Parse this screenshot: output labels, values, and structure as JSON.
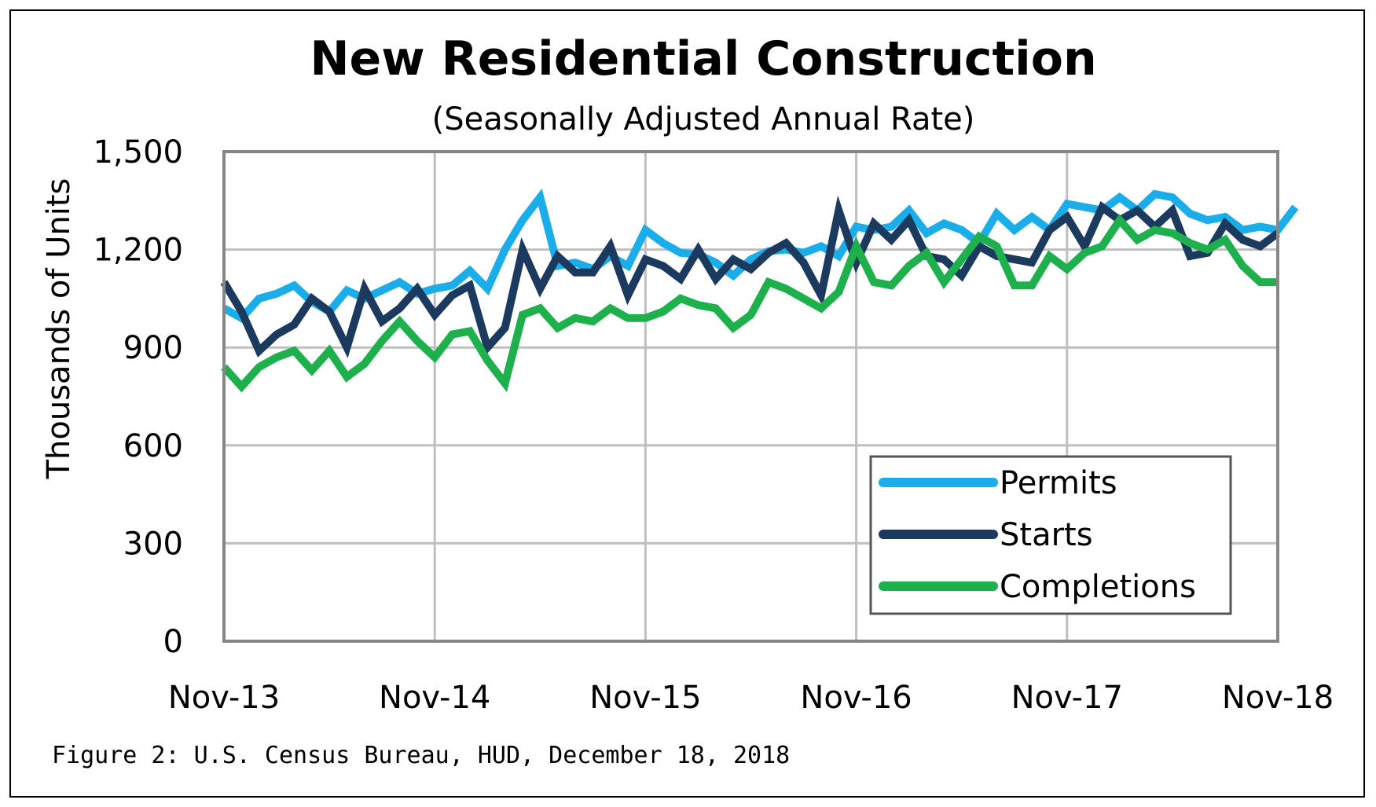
{
  "chart_data": {
    "type": "line",
    "title": "New Residential Construction",
    "subtitle": "(Seasonally Adjusted Annual Rate)",
    "ylabel": "Thousands of Units",
    "xlabel": "",
    "ylim": [
      0,
      1500
    ],
    "yticks": [
      "0",
      "300",
      "600",
      "900",
      "1,200",
      "1,500"
    ],
    "ytick_values": [
      0,
      300,
      600,
      900,
      1200,
      1500
    ],
    "xticks": [
      "Nov-13",
      "Nov-14",
      "Nov-15",
      "Nov-16",
      "Nov-17",
      "Nov-18"
    ],
    "xtick_positions": [
      0,
      12,
      24,
      36,
      48,
      60
    ],
    "grid": true,
    "legend_position": "bottom-right",
    "series": [
      {
        "name": "Permits",
        "color": "#1BADE9",
        "values": [
          1020,
          990,
          1050,
          1065,
          1090,
          1040,
          1010,
          1075,
          1050,
          1075,
          1100,
          1065,
          1080,
          1090,
          1135,
          1080,
          1200,
          1290,
          1360,
          1150,
          1160,
          1140,
          1180,
          1150,
          1260,
          1220,
          1190,
          1185,
          1160,
          1120,
          1170,
          1195,
          1200,
          1190,
          1210,
          1180,
          1270,
          1260,
          1270,
          1320,
          1250,
          1280,
          1260,
          1220,
          1310,
          1260,
          1300,
          1260,
          1340,
          1330,
          1320,
          1360,
          1320,
          1370,
          1360,
          1310,
          1290,
          1300,
          1260,
          1270,
          1260,
          1330
        ]
      },
      {
        "name": "Starts",
        "color": "#1C3A5E",
        "values": [
          1100,
          1010,
          890,
          940,
          970,
          1050,
          1010,
          900,
          1080,
          980,
          1020,
          1080,
          1000,
          1060,
          1090,
          900,
          960,
          1200,
          1080,
          1180,
          1130,
          1130,
          1210,
          1060,
          1170,
          1150,
          1110,
          1200,
          1110,
          1170,
          1140,
          1190,
          1220,
          1160,
          1060,
          1320,
          1160,
          1280,
          1230,
          1290,
          1180,
          1170,
          1120,
          1210,
          1180,
          1170,
          1160,
          1260,
          1300,
          1210,
          1330,
          1290,
          1320,
          1270,
          1320,
          1180,
          1190,
          1280,
          1230,
          1210,
          1250
        ]
      },
      {
        "name": "Completions",
        "color": "#1DB04C",
        "values": [
          840,
          780,
          840,
          870,
          890,
          830,
          890,
          810,
          850,
          920,
          980,
          920,
          870,
          940,
          950,
          860,
          790,
          1000,
          1020,
          960,
          990,
          980,
          1020,
          990,
          990,
          1010,
          1050,
          1030,
          1020,
          960,
          1000,
          1100,
          1080,
          1050,
          1020,
          1070,
          1210,
          1100,
          1090,
          1150,
          1190,
          1100,
          1170,
          1240,
          1210,
          1090,
          1090,
          1180,
          1140,
          1190,
          1210,
          1290,
          1230,
          1260,
          1250,
          1220,
          1200,
          1230,
          1150,
          1100,
          1100
        ]
      }
    ]
  },
  "source_note": "Figure 2: U.S. Census Bureau, HUD, December 18, 2018"
}
